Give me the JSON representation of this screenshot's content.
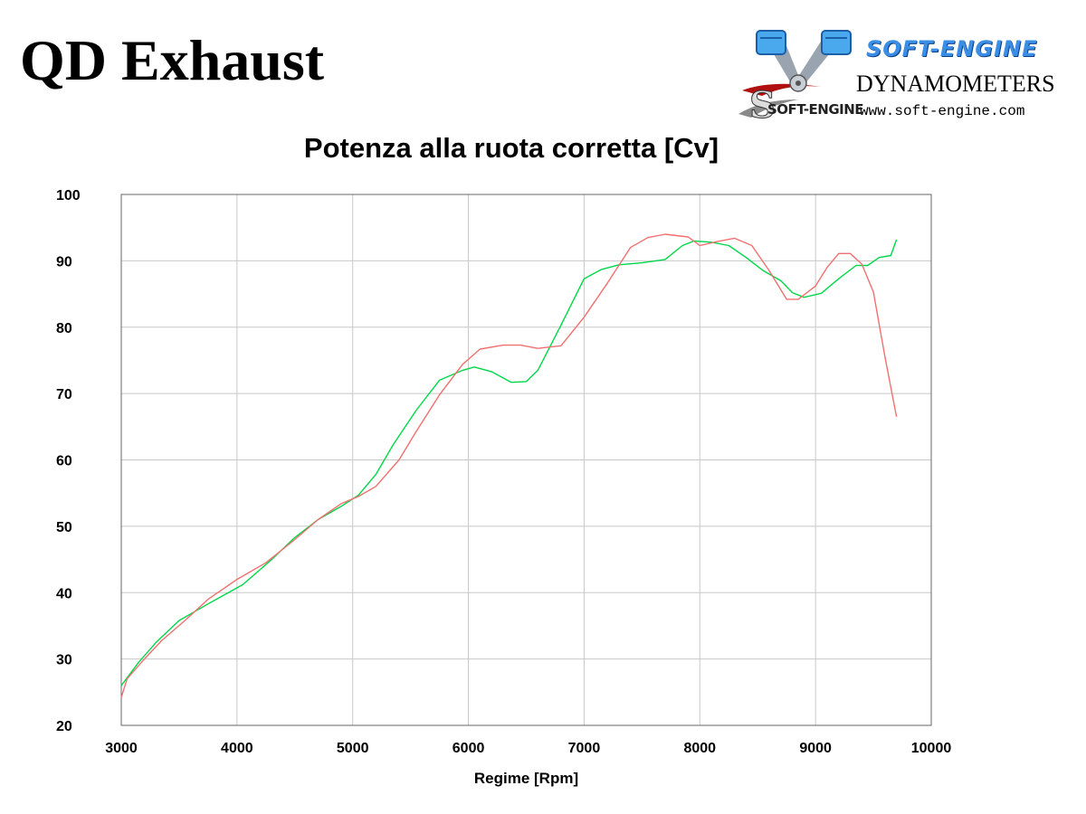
{
  "header": {
    "title": "QD Exhaust"
  },
  "logo": {
    "brand": "SOFT-ENGINE",
    "tagline": "DYNAMOMETERS",
    "url": "www.soft-engine.com",
    "wordmark": "SOFT-ENGINE"
  },
  "chart_data": {
    "type": "line",
    "title": "Potenza alla ruota corretta [Cv]",
    "xlabel": "Regime [Rpm]",
    "ylabel": "",
    "xlim": [
      3000,
      10000
    ],
    "ylim": [
      20,
      100
    ],
    "xticks": [
      "3000",
      "4000",
      "5000",
      "6000",
      "7000",
      "8000",
      "9000",
      "10000"
    ],
    "yticks": [
      "20",
      "30",
      "40",
      "50",
      "60",
      "70",
      "80",
      "90",
      "100"
    ],
    "grid": true,
    "series": [
      {
        "color": "#00d84a",
        "x": [
          3000,
          3150,
          3300,
          3500,
          3750,
          4050,
          4300,
          4500,
          4700,
          4900,
          5050,
          5200,
          5350,
          5550,
          5750,
          5950,
          6050,
          6200,
          6370,
          6500,
          6600,
          6800,
          7000,
          7150,
          7300,
          7500,
          7700,
          7850,
          7950,
          8100,
          8250,
          8400,
          8550,
          8700,
          8800,
          8900,
          9050,
          9200,
          9350,
          9450,
          9550,
          9650,
          9700
        ],
        "y": [
          26,
          29.5,
          32.5,
          35.8,
          38.3,
          41.2,
          45,
          48.3,
          51,
          53,
          54.7,
          57.8,
          62.3,
          67.5,
          72,
          73.5,
          74,
          73.3,
          71.7,
          71.8,
          73.5,
          80.3,
          87.3,
          88.7,
          89.4,
          89.7,
          90.2,
          92.3,
          93,
          92.8,
          92.3,
          90.5,
          88.5,
          87,
          85.2,
          84.5,
          85.1,
          87.3,
          89.3,
          89.3,
          90.5,
          90.8,
          93.2
        ]
      },
      {
        "color": "#f07070",
        "x": [
          3000,
          3050,
          3200,
          3350,
          3550,
          3750,
          4000,
          4250,
          4500,
          4700,
          4900,
          5050,
          5200,
          5400,
          5550,
          5750,
          5950,
          6100,
          6300,
          6450,
          6600,
          6800,
          7000,
          7200,
          7400,
          7550,
          7700,
          7900,
          8000,
          8150,
          8300,
          8450,
          8600,
          8750,
          8850,
          9000,
          9100,
          9200,
          9300,
          9400,
          9500,
          9600,
          9700
        ],
        "y": [
          24.2,
          27,
          30,
          32.8,
          35.8,
          39,
          42,
          44.5,
          48,
          51,
          53.4,
          54.5,
          56,
          60,
          64.3,
          69.8,
          74.4,
          76.7,
          77.3,
          77.3,
          76.8,
          77.2,
          81.5,
          86.6,
          92,
          93.5,
          94,
          93.6,
          92.3,
          92.9,
          93.4,
          92.3,
          88.5,
          84.2,
          84.2,
          86.2,
          89,
          91.1,
          91.1,
          89.5,
          85.3,
          75.5,
          66.5
        ]
      }
    ]
  }
}
